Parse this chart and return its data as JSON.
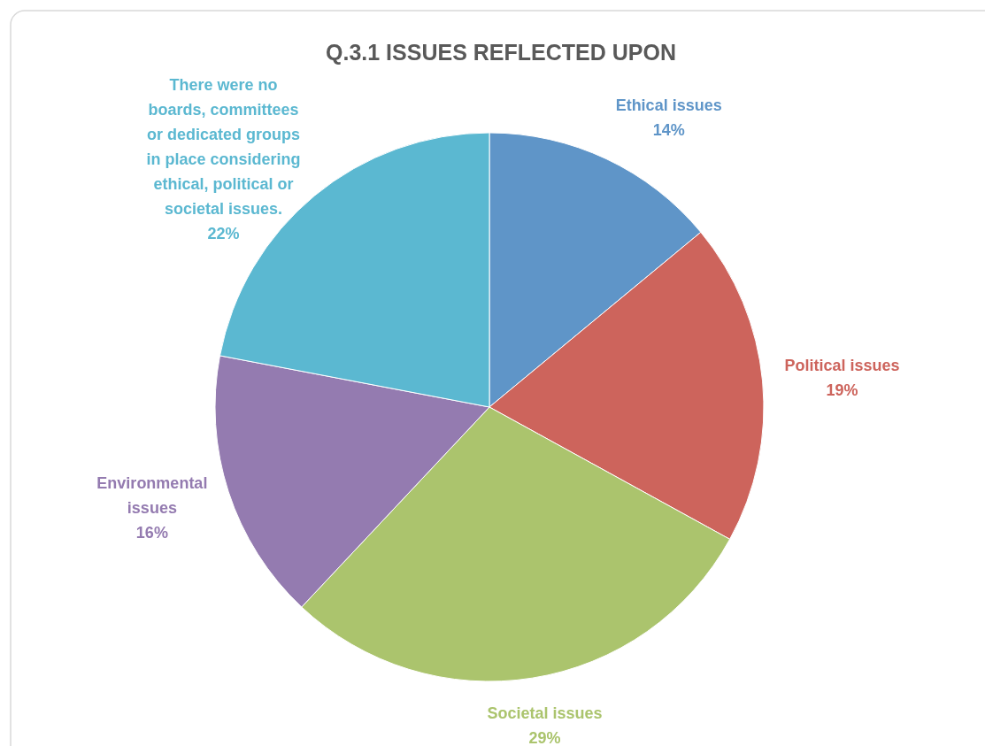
{
  "chart_data": {
    "type": "pie",
    "title": "Q.3.1 ISSUES REFLECTED UPON",
    "categories": [
      "Ethical issues",
      "Political issues",
      "Societal issues",
      "Environmental issues",
      "There were no boards, committees or dedicated groups in place considering ethical, political or societal issues."
    ],
    "values": [
      14,
      19,
      29,
      16,
      22
    ],
    "colors": [
      "#5f95c8",
      "#cd645c",
      "#abc46d",
      "#947bb0",
      "#5bb8d1"
    ],
    "value_labels": [
      "14%",
      "19%",
      "29%",
      "16%",
      "22%"
    ]
  }
}
